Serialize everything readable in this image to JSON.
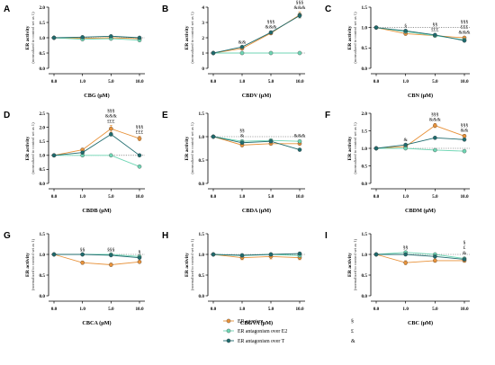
{
  "labels": {
    "ylabel": "ER activity",
    "ysub": "(normalized to control set as 1)",
    "xticks": [
      "0.0",
      "1.0",
      "5.0",
      "10.0"
    ]
  },
  "legend": [
    {
      "name": "ER agonism",
      "symbol": "§"
    },
    {
      "name": "ER antagonism over E2",
      "symbol": "£"
    },
    {
      "name": "ER antagonism over T",
      "symbol": "&"
    }
  ],
  "colors": {
    "agonism": "#e8923a",
    "antE2": "#6fd6b4",
    "antT": "#1f6b6e",
    "axis": "#000000",
    "ref": "#555555"
  },
  "chart_data": [
    {
      "panel": "A",
      "type": "line",
      "xlabel": "CBG (μM)",
      "ylim": [
        0,
        2.0
      ],
      "yticks": [
        "0.0",
        "0.5",
        "1.0",
        "1.5",
        "2.0"
      ],
      "categories": [
        "0.0",
        "1.0",
        "5.0",
        "10.0"
      ],
      "series": [
        {
          "name": "ER agonism",
          "values": [
            1.0,
            0.98,
            1.0,
            0.97
          ],
          "errors": [
            0.02,
            0.03,
            0.03,
            0.03
          ]
        },
        {
          "name": "ER antagonism over E2",
          "values": [
            1.0,
            0.95,
            0.97,
            0.92
          ],
          "errors": [
            0.02,
            0.02,
            0.02,
            0.02
          ]
        },
        {
          "name": "ER antagonism over T",
          "values": [
            1.0,
            1.02,
            1.05,
            1.0
          ],
          "errors": [
            0.02,
            0.02,
            0.02,
            0.02
          ]
        }
      ],
      "annotations": []
    },
    {
      "panel": "B",
      "type": "line",
      "xlabel": "CBDV (μM)",
      "ylim": [
        0,
        4
      ],
      "yticks": [
        "0",
        "1",
        "2",
        "3",
        "4"
      ],
      "categories": [
        "0.0",
        "1.0",
        "5.0",
        "10.0"
      ],
      "series": [
        {
          "name": "ER agonism",
          "values": [
            1.0,
            1.3,
            2.3,
            3.5
          ],
          "errors": [
            0.02,
            0.06,
            0.1,
            0.2
          ]
        },
        {
          "name": "ER antagonism over E2",
          "values": [
            1.0,
            1.0,
            1.0,
            1.0
          ],
          "errors": [
            0.02,
            0.02,
            0.02,
            0.02
          ]
        },
        {
          "name": "ER antagonism over T",
          "values": [
            1.0,
            1.4,
            2.35,
            3.45
          ],
          "errors": [
            0.02,
            0.05,
            0.08,
            0.15
          ]
        }
      ],
      "annotations": [
        {
          "x": 1,
          "lines": [
            "&&"
          ]
        },
        {
          "x": 2,
          "lines": [
            "§§§",
            "&&&"
          ]
        },
        {
          "x": 3,
          "lines": [
            "§§§",
            "&&&"
          ]
        }
      ]
    },
    {
      "panel": "C",
      "type": "line",
      "xlabel": "CBN (μM)",
      "ylim": [
        0,
        1.5
      ],
      "yticks": [
        "0.0",
        "0.5",
        "1.0",
        "1.5"
      ],
      "categories": [
        "0.0",
        "1.0",
        "5.0",
        "10.0"
      ],
      "series": [
        {
          "name": "ER agonism",
          "values": [
            1.0,
            0.85,
            0.8,
            0.75
          ],
          "errors": [
            0.02,
            0.04,
            0.03,
            0.03
          ]
        },
        {
          "name": "ER antagonism over E2",
          "values": [
            1.0,
            0.9,
            0.8,
            0.7
          ],
          "errors": [
            0.02,
            0.03,
            0.03,
            0.03
          ]
        },
        {
          "name": "ER antagonism over T",
          "values": [
            1.0,
            0.92,
            0.82,
            0.68
          ],
          "errors": [
            0.02,
            0.03,
            0.03,
            0.03
          ]
        }
      ],
      "annotations": [
        {
          "x": 1,
          "lines": [
            "§"
          ]
        },
        {
          "x": 2,
          "lines": [
            "§§",
            "£££"
          ]
        },
        {
          "x": 3,
          "lines": [
            "§§§",
            "£££",
            "&&&"
          ]
        }
      ]
    },
    {
      "panel": "D",
      "type": "line",
      "xlabel": "CBDB (μM)",
      "ylim": [
        0,
        2.5
      ],
      "yticks": [
        "0.0",
        "0.5",
        "1.0",
        "1.5",
        "2.0",
        "2.5"
      ],
      "categories": [
        "0.0",
        "1.0",
        "5.0",
        "10.0"
      ],
      "series": [
        {
          "name": "ER agonism",
          "values": [
            1.0,
            1.2,
            1.95,
            1.6
          ],
          "errors": [
            0.02,
            0.05,
            0.12,
            0.08
          ]
        },
        {
          "name": "ER antagonism over E2",
          "values": [
            1.0,
            1.0,
            1.0,
            0.6
          ],
          "errors": [
            0.02,
            0.03,
            0.03,
            0.03
          ]
        },
        {
          "name": "ER antagonism over T",
          "values": [
            1.0,
            1.1,
            1.75,
            1.0
          ],
          "errors": [
            0.02,
            0.04,
            0.06,
            0.04
          ]
        }
      ],
      "annotations": [
        {
          "x": 2,
          "lines": [
            "§§§",
            "&&&",
            "£££"
          ]
        },
        {
          "x": 3,
          "lines": [
            "§§§",
            "£££"
          ]
        }
      ]
    },
    {
      "panel": "E",
      "type": "line",
      "xlabel": "CBDA (μM)",
      "ylim": [
        0,
        1.5
      ],
      "yticks": [
        "0.0",
        "0.5",
        "1.0",
        "1.5"
      ],
      "categories": [
        "0.0",
        "1.0",
        "5.0",
        "10.0"
      ],
      "series": [
        {
          "name": "ER agonism",
          "values": [
            1.0,
            0.82,
            0.85,
            0.85
          ],
          "errors": [
            0.02,
            0.04,
            0.03,
            0.03
          ]
        },
        {
          "name": "ER antagonism over E2",
          "values": [
            1.0,
            0.9,
            0.92,
            0.9
          ],
          "errors": [
            0.02,
            0.03,
            0.03,
            0.03
          ]
        },
        {
          "name": "ER antagonism over T",
          "values": [
            1.0,
            0.87,
            0.9,
            0.72
          ],
          "errors": [
            0.02,
            0.03,
            0.03,
            0.03
          ]
        }
      ],
      "annotations": [
        {
          "x": 1,
          "lines": [
            "§§",
            "&"
          ]
        },
        {
          "x": 3,
          "lines": [
            "&&&"
          ]
        }
      ]
    },
    {
      "panel": "F",
      "type": "line",
      "xlabel": "CBDM (μM)",
      "ylim": [
        0,
        2.0
      ],
      "yticks": [
        "0.0",
        "0.5",
        "1.0",
        "1.5",
        "2.0"
      ],
      "categories": [
        "0.0",
        "1.0",
        "5.0",
        "10.0"
      ],
      "series": [
        {
          "name": "ER agonism",
          "values": [
            1.0,
            1.05,
            1.65,
            1.35
          ],
          "errors": [
            0.02,
            0.04,
            0.06,
            0.05
          ]
        },
        {
          "name": "ER antagonism over E2",
          "values": [
            1.0,
            1.0,
            0.95,
            0.92
          ],
          "errors": [
            0.02,
            0.03,
            0.03,
            0.03
          ]
        },
        {
          "name": "ER antagonism over T",
          "values": [
            1.0,
            1.1,
            1.3,
            1.25
          ],
          "errors": [
            0.02,
            0.03,
            0.04,
            0.04
          ]
        }
      ],
      "annotations": [
        {
          "x": 1,
          "lines": [
            "&"
          ]
        },
        {
          "x": 2,
          "lines": [
            "§§§",
            "&&&"
          ]
        },
        {
          "x": 3,
          "lines": [
            "§§§",
            "&&"
          ]
        }
      ]
    },
    {
      "panel": "G",
      "type": "line",
      "xlabel": "CBCA (μM)",
      "ylim": [
        0,
        1.5
      ],
      "yticks": [
        "0.0",
        "0.5",
        "1.0",
        "1.5"
      ],
      "categories": [
        "0.0",
        "1.0",
        "5.0",
        "10.0"
      ],
      "series": [
        {
          "name": "ER agonism",
          "values": [
            1.0,
            0.8,
            0.75,
            0.82
          ],
          "errors": [
            0.02,
            0.04,
            0.04,
            0.03
          ]
        },
        {
          "name": "ER antagonism over E2",
          "values": [
            1.0,
            1.0,
            1.0,
            0.95
          ],
          "errors": [
            0.02,
            0.02,
            0.02,
            0.02
          ]
        },
        {
          "name": "ER antagonism over T",
          "values": [
            1.0,
            1.0,
            0.98,
            0.92
          ],
          "errors": [
            0.02,
            0.02,
            0.02,
            0.02
          ]
        }
      ],
      "annotations": [
        {
          "x": 1,
          "lines": [
            "§§"
          ]
        },
        {
          "x": 2,
          "lines": [
            "§§§"
          ]
        },
        {
          "x": 3,
          "lines": [
            "§"
          ]
        }
      ]
    },
    {
      "panel": "H",
      "type": "line",
      "xlabel": "CBGVA (μM)",
      "ylim": [
        0,
        1.5
      ],
      "yticks": [
        "0.0",
        "0.5",
        "1.0",
        "1.5"
      ],
      "categories": [
        "0.0",
        "1.0",
        "5.0",
        "10.0"
      ],
      "series": [
        {
          "name": "ER agonism",
          "values": [
            1.0,
            0.92,
            0.95,
            0.92
          ],
          "errors": [
            0.02,
            0.05,
            0.06,
            0.05
          ]
        },
        {
          "name": "ER antagonism over E2",
          "values": [
            1.0,
            0.97,
            1.0,
            0.97
          ],
          "errors": [
            0.02,
            0.03,
            0.03,
            0.03
          ]
        },
        {
          "name": "ER antagonism over T",
          "values": [
            1.0,
            0.98,
            1.0,
            1.02
          ],
          "errors": [
            0.02,
            0.03,
            0.03,
            0.03
          ]
        }
      ],
      "annotations": []
    },
    {
      "panel": "I",
      "type": "line",
      "xlabel": "CBC (μM)",
      "ylim": [
        0,
        1.5
      ],
      "yticks": [
        "0.0",
        "0.5",
        "1.0",
        "1.5"
      ],
      "categories": [
        "0.0",
        "1.0",
        "5.0",
        "10.0"
      ],
      "series": [
        {
          "name": "ER agonism",
          "values": [
            1.0,
            0.8,
            0.85,
            0.85
          ],
          "errors": [
            0.02,
            0.05,
            0.04,
            0.04
          ]
        },
        {
          "name": "ER antagonism over E2",
          "values": [
            1.0,
            1.05,
            1.0,
            0.9
          ],
          "errors": [
            0.02,
            0.03,
            0.03,
            0.03
          ]
        },
        {
          "name": "ER antagonism over T",
          "values": [
            1.0,
            1.0,
            0.95,
            0.88
          ],
          "errors": [
            0.02,
            0.03,
            0.03,
            0.03
          ]
        }
      ],
      "annotations": [
        {
          "x": 1,
          "lines": [
            "§§"
          ]
        },
        {
          "x": 3,
          "lines": [
            "§",
            "£",
            "&"
          ]
        }
      ]
    }
  ]
}
